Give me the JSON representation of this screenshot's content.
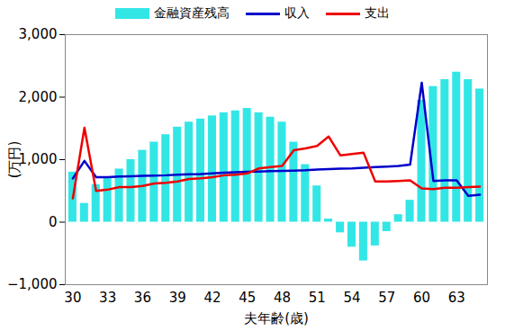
{
  "chart_data": {
    "type": "combo",
    "x_label": "夫年齢(歳)",
    "y_label": "(万円)",
    "categories": [
      "30",
      null,
      null,
      "33",
      null,
      null,
      "36",
      null,
      null,
      "39",
      null,
      null,
      "42",
      null,
      null,
      "45",
      null,
      null,
      "48",
      null,
      null,
      "51",
      null,
      null,
      "54",
      null,
      null,
      "57",
      null,
      null,
      "60",
      null,
      null,
      "63",
      null,
      null
    ],
    "series": [
      {
        "name": "金融資産残高",
        "type": "bar",
        "color": "#33e6e6",
        "values": [
          800,
          300,
          600,
          700,
          850,
          1000,
          1150,
          1280,
          1400,
          1520,
          1600,
          1650,
          1700,
          1750,
          1780,
          1820,
          1750,
          1680,
          1600,
          1280,
          920,
          580,
          50,
          -170,
          -400,
          -620,
          -380,
          -150,
          120,
          350,
          1950,
          2170,
          2280,
          2400,
          2280,
          2130
        ]
      },
      {
        "name": "収入",
        "type": "line",
        "color": "#0000cc",
        "values": [
          700,
          980,
          720,
          720,
          730,
          735,
          740,
          745,
          750,
          760,
          765,
          770,
          780,
          790,
          800,
          805,
          810,
          815,
          820,
          825,
          830,
          840,
          850,
          855,
          860,
          870,
          880,
          890,
          900,
          920,
          2230,
          660,
          670,
          670,
          420,
          440
        ]
      },
      {
        "name": "支出",
        "type": "line",
        "color": "#ee0000",
        "values": [
          380,
          1510,
          500,
          520,
          560,
          560,
          580,
          620,
          630,
          650,
          690,
          700,
          720,
          750,
          760,
          780,
          860,
          880,
          900,
          1150,
          1180,
          1220,
          1370,
          1070,
          1090,
          1110,
          650,
          650,
          660,
          670,
          540,
          530,
          550,
          550,
          560,
          570
        ]
      }
    ],
    "ylim": [
      -1000,
      3000
    ],
    "yticks": [
      -1000,
      0,
      1000,
      2000,
      3000
    ],
    "grid": false,
    "legend": "top"
  }
}
